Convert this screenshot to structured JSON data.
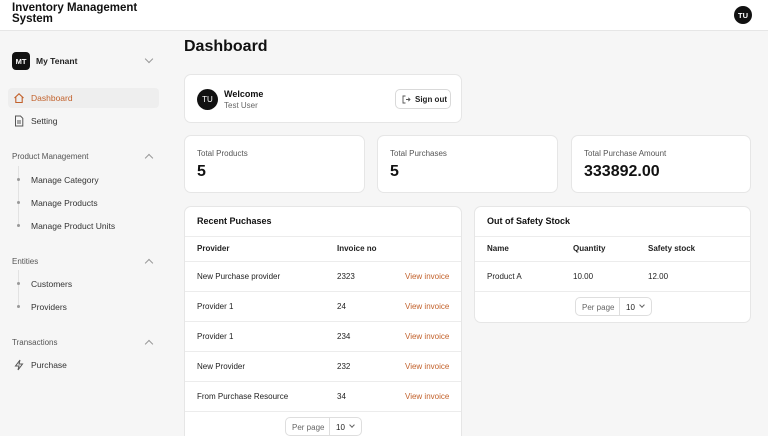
{
  "app": {
    "title": "Inventory Management System",
    "user_initials": "TU"
  },
  "sidebar": {
    "tenant": {
      "initials": "MT",
      "name": "My Tenant"
    },
    "main_items": [
      {
        "label": "Dashboard",
        "icon": "home-icon",
        "active": true
      },
      {
        "label": "Setting",
        "icon": "document-icon",
        "active": false
      }
    ],
    "sections": [
      {
        "title": "Product Management",
        "items": [
          "Manage Category",
          "Manage Products",
          "Manage Product Units"
        ]
      },
      {
        "title": "Entities",
        "items": [
          "Customers",
          "Providers"
        ]
      },
      {
        "title": "Transactions",
        "items": [
          {
            "label": "Purchase",
            "icon": "lightning-icon"
          }
        ]
      }
    ]
  },
  "page": {
    "title": "Dashboard"
  },
  "welcome": {
    "initials": "TU",
    "title": "Welcome",
    "user": "Test User",
    "signout_label": "Sign out"
  },
  "stats": [
    {
      "label": "Total Products",
      "value": "5"
    },
    {
      "label": "Total Purchases",
      "value": "5"
    },
    {
      "label": "Total Purchase Amount",
      "value": "333892.00"
    }
  ],
  "recent_purchases": {
    "title": "Recent Puchases",
    "columns": [
      "Provider",
      "Invoice no"
    ],
    "rows": [
      {
        "provider": "New Purchase provider",
        "invoice": "2323",
        "action": "View invoice"
      },
      {
        "provider": "Provider 1",
        "invoice": "24",
        "action": "View invoice"
      },
      {
        "provider": "Provider 1",
        "invoice": "234",
        "action": "View invoice"
      },
      {
        "provider": "New Provider",
        "invoice": "232",
        "action": "View invoice"
      },
      {
        "provider": "From Purchase Resource",
        "invoice": "34",
        "action": "View invoice"
      }
    ],
    "pager": {
      "label": "Per page",
      "value": "10"
    }
  },
  "safety_stock": {
    "title": "Out of Safety Stock",
    "columns": [
      "Name",
      "Quantity",
      "Safety stock"
    ],
    "rows": [
      {
        "name": "Product A",
        "quantity": "10.00",
        "safety": "12.00"
      }
    ],
    "pager": {
      "label": "Per page",
      "value": "10"
    }
  },
  "colors": {
    "accent": "#c2612b",
    "background": "#f6f6f6",
    "card": "#ffffff"
  }
}
